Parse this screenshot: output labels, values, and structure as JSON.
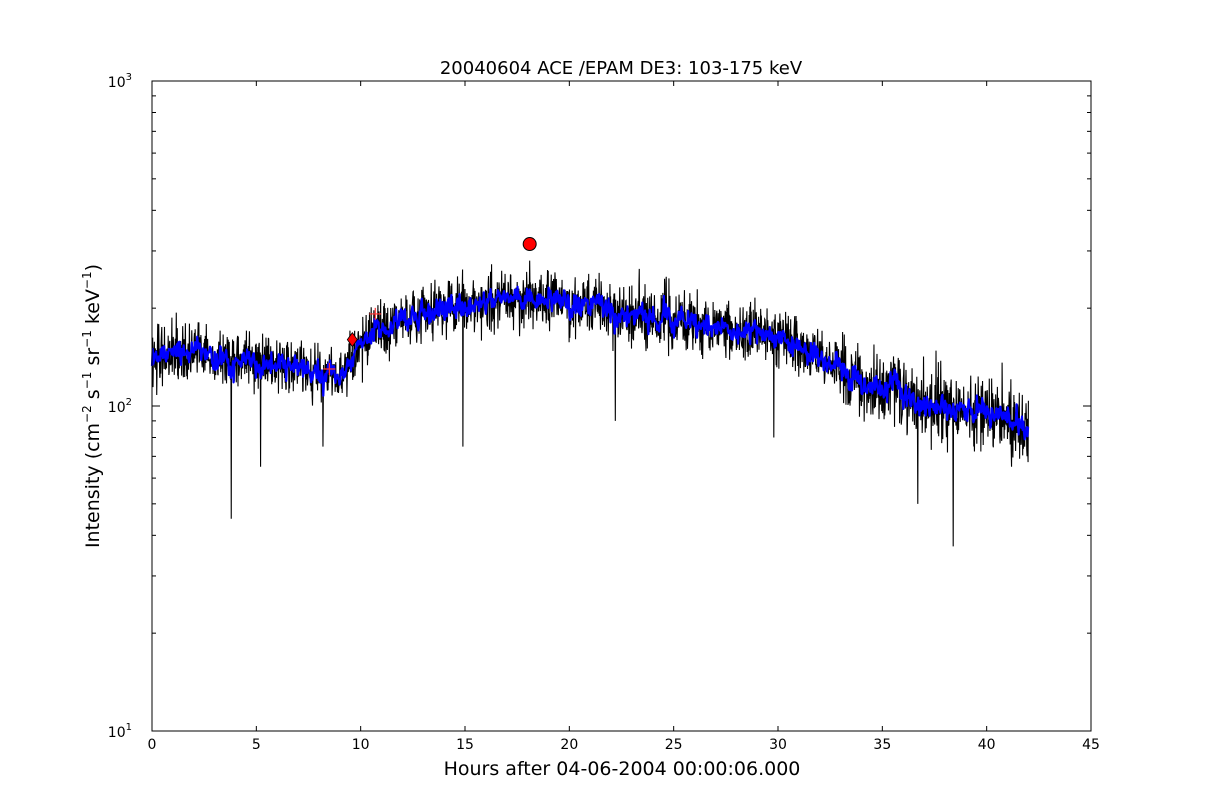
{
  "chart_data": {
    "type": "line",
    "title": "20040604 ACE /EPAM DE3: 103-175 keV",
    "xlabel": "Hours after 04-06-2004 00:00:06.000",
    "ylabel": {
      "prefix": "Intensity (cm",
      "parts": [
        {
          "text": "−2",
          "sup": true
        },
        {
          "text": " s",
          "sup": false
        },
        {
          "text": "−1",
          "sup": true
        },
        {
          "text": " sr",
          "sup": false
        },
        {
          "text": "−1",
          "sup": true
        },
        {
          "text": " keV",
          "sup": false
        },
        {
          "text": "−1",
          "sup": true
        },
        {
          "text": ")",
          "sup": false
        }
      ]
    },
    "xlim": [
      0,
      45
    ],
    "ylim": [
      10,
      1000
    ],
    "yscale": "log",
    "grid": false,
    "x_ticks": [
      0,
      5,
      10,
      15,
      20,
      25,
      30,
      35,
      40,
      45
    ],
    "y_ticks": [
      {
        "value": 10,
        "base": "10",
        "exp": "1"
      },
      {
        "value": 100,
        "base": "10",
        "exp": "2"
      },
      {
        "value": 1000,
        "base": "10",
        "exp": "3"
      }
    ],
    "series": [
      {
        "style": "raw",
        "color": "#000000",
        "x_range": [
          0,
          42
        ],
        "trend_x": [
          0,
          2,
          4,
          6,
          8,
          9,
          10,
          11,
          12,
          14,
          16,
          18,
          20,
          22,
          24,
          26,
          28,
          30,
          31,
          32,
          33,
          34,
          35,
          36,
          37,
          38,
          39,
          40,
          41,
          42
        ],
        "trend_y": [
          140,
          148,
          142,
          135,
          125,
          122,
          150,
          175,
          185,
          200,
          210,
          215,
          205,
          195,
          185,
          178,
          172,
          165,
          155,
          142,
          130,
          118,
          112,
          108,
          104,
          98,
          95,
          92,
          90,
          88
        ],
        "outliers": [
          {
            "x": 3.8,
            "y": 45
          },
          {
            "x": 5.2,
            "y": 65
          },
          {
            "x": 14.9,
            "y": 75
          },
          {
            "x": 22.2,
            "y": 90
          },
          {
            "x": 38.4,
            "y": 37
          },
          {
            "x": 36.7,
            "y": 50
          },
          {
            "x": 18.1,
            "y": 280
          },
          {
            "x": 8.2,
            "y": 75
          },
          {
            "x": 29.8,
            "y": 80
          }
        ]
      },
      {
        "style": "smoothed",
        "color": "#0000ff",
        "x_range": [
          0,
          42
        ]
      }
    ],
    "markers": [
      {
        "shape": "cross",
        "x": 8.5,
        "y": 130,
        "color": "#ff3333"
      },
      {
        "shape": "diamond",
        "x": 9.6,
        "y": 160,
        "color": "#ff0000"
      },
      {
        "shape": "cross",
        "x": 10.7,
        "y": 192,
        "color": "#ff3333"
      },
      {
        "shape": "circle",
        "x": 18.1,
        "y": 315,
        "color": "#ff0000"
      }
    ]
  }
}
